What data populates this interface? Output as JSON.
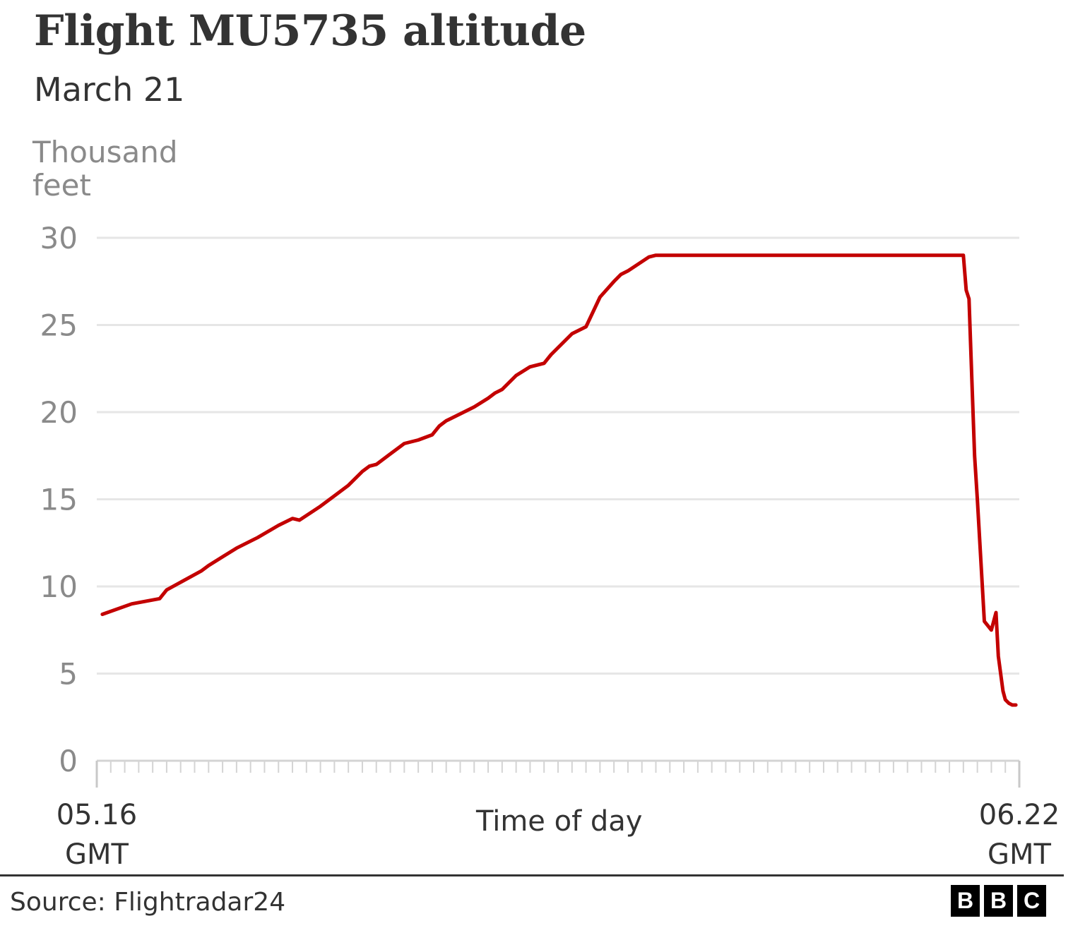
{
  "chart_data": {
    "type": "line",
    "title": "Flight MU5735 altitude",
    "subtitle": "March 21",
    "ylabel_lines": [
      "Thousand",
      "feet"
    ],
    "xlabel": "Time of day",
    "source": "Source: Flightradar24",
    "logo_letters": [
      "B",
      "B",
      "C"
    ],
    "line_color": "#c30000",
    "grid_color": "#e6e6e6",
    "ylim": [
      0,
      30
    ],
    "yticks": [
      {
        "value": 0,
        "label": "0"
      },
      {
        "value": 5,
        "label": "5"
      },
      {
        "value": 10,
        "label": "10"
      },
      {
        "value": 15,
        "label": "15"
      },
      {
        "value": 20,
        "label": "20"
      },
      {
        "value": 25,
        "label": "25"
      },
      {
        "value": 30,
        "label": "30"
      }
    ],
    "xlim": [
      "05:16",
      "06:22"
    ],
    "xticks": [
      {
        "value": "05:16",
        "lines": [
          "05.16",
          "GMT"
        ]
      },
      {
        "value": "06:22",
        "lines": [
          "06.22",
          "GMT"
        ]
      }
    ],
    "grid": true,
    "legend": "none",
    "series": [
      {
        "x": [
          "05:16:24",
          "05:18:30",
          "05:20:30",
          "05:21:00",
          "05:23:30",
          "05:24:00",
          "05:25:00",
          "05:26:00",
          "05:27:30",
          "05:29:00",
          "05:30:00",
          "05:30:30",
          "05:32:00",
          "05:33:00",
          "05:34:00",
          "05:35:00",
          "05:35:30",
          "05:36:00",
          "05:37:00",
          "05:38:00",
          "05:39:00",
          "05:40:00",
          "05:40:30",
          "05:41:00",
          "05:42:00",
          "05:43:00",
          "05:44:00",
          "05:44:30",
          "05:45:00",
          "05:46:00",
          "05:47:00",
          "05:48:00",
          "05:48:30",
          "05:49:00",
          "05:50:00",
          "05:51:00",
          "05:52:00",
          "05:53:00",
          "05:53:30",
          "05:54:00",
          "05:55:30",
          "05:56:00",
          "05:57:00",
          "05:58:00",
          "06:01:00",
          "06:04:00",
          "06:09:00",
          "06:14:00",
          "06:18:00",
          "06:18:12",
          "06:18:24",
          "06:18:36",
          "06:18:48",
          "06:19:00",
          "06:19:30",
          "06:20:00",
          "06:20:20",
          "06:20:30",
          "06:20:50",
          "06:21:00",
          "06:21:15",
          "06:21:30",
          "06:21:45"
        ],
        "y": [
          8.4,
          9.0,
          9.3,
          9.8,
          10.9,
          11.2,
          11.7,
          12.2,
          12.8,
          13.5,
          13.9,
          13.8,
          14.6,
          15.2,
          15.8,
          16.6,
          16.9,
          17.0,
          17.6,
          18.2,
          18.4,
          18.7,
          19.2,
          19.5,
          19.9,
          20.3,
          20.8,
          21.1,
          21.3,
          22.1,
          22.6,
          22.8,
          23.3,
          23.7,
          24.5,
          24.9,
          26.6,
          27.5,
          27.9,
          28.1,
          28.9,
          29.0,
          29.0,
          29.0,
          29.0,
          29.0,
          29.0,
          29.0,
          29.0,
          27.0,
          26.5,
          22.0,
          17.5,
          15.0,
          8.0,
          7.5,
          8.5,
          6.0,
          4.0,
          3.5,
          3.3,
          3.2,
          3.2
        ]
      }
    ]
  }
}
